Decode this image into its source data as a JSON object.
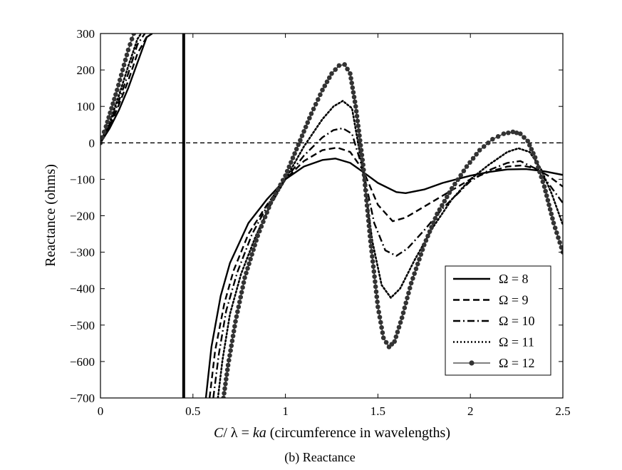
{
  "caption": "(b) Reactance",
  "chart_data": {
    "type": "line",
    "title": "",
    "xlabel_parts": [
      "C",
      "/ λ = ",
      "ka",
      " (circumference in wavelengths)"
    ],
    "ylabel": "Reactance (ohms)",
    "xlim": [
      0,
      2.5
    ],
    "ylim": [
      -700,
      300
    ],
    "xticks": [
      0,
      0.5,
      1,
      1.5,
      2,
      2.5
    ],
    "xtick_labels": [
      "0",
      "0.5",
      "1",
      "1.5",
      "2",
      "2.5"
    ],
    "yticks": [
      300,
      200,
      100,
      0,
      -100,
      -200,
      -300,
      -400,
      -500,
      -600,
      -700
    ],
    "ytick_labels": [
      "300",
      "200",
      "100",
      "0",
      "−100",
      "−200",
      "−300",
      "−400",
      "−500",
      "−600",
      "−700"
    ],
    "grid": false,
    "legend_position": "bottom-right",
    "reference_lines": [
      {
        "orientation": "horizontal",
        "value": 0,
        "style": "dashed"
      },
      {
        "orientation": "vertical",
        "value": 0.45,
        "style": "solid"
      }
    ],
    "series": [
      {
        "name": "Ω = 8",
        "style": "solid",
        "segments": [
          {
            "x": [
              0,
              0.05,
              0.1,
              0.15,
              0.2,
              0.25,
              0.28
            ],
            "y": [
              0,
              40,
              90,
              150,
              220,
              290,
              300
            ]
          },
          {
            "x": [
              0.57,
              0.6,
              0.65,
              0.7,
              0.8,
              0.9,
              1.0,
              1.1,
              1.2,
              1.27,
              1.35,
              1.42,
              1.5,
              1.6,
              1.65,
              1.75,
              1.85,
              2.0,
              2.1,
              2.2,
              2.3,
              2.4,
              2.5
            ],
            "y": [
              -700,
              -560,
              -420,
              -330,
              -220,
              -155,
              -100,
              -65,
              -47,
              -43,
              -55,
              -80,
              -110,
              -135,
              -138,
              -128,
              -110,
              -90,
              -80,
              -73,
              -72,
              -78,
              -88
            ]
          }
        ]
      },
      {
        "name": "Ω = 9",
        "style": "dashed",
        "segments": [
          {
            "x": [
              0,
              0.05,
              0.1,
              0.15,
              0.2,
              0.26
            ],
            "y": [
              0,
              45,
              105,
              170,
              245,
              300
            ]
          },
          {
            "x": [
              0.59,
              0.62,
              0.67,
              0.72,
              0.8,
              0.9,
              1.0,
              1.1,
              1.2,
              1.28,
              1.35,
              1.42,
              1.5,
              1.58,
              1.65,
              1.75,
              1.85,
              2.0,
              2.1,
              2.2,
              2.28,
              2.35,
              2.42,
              2.5
            ],
            "y": [
              -700,
              -570,
              -440,
              -350,
              -250,
              -170,
              -100,
              -50,
              -20,
              -13,
              -25,
              -75,
              -170,
              -215,
              -205,
              -175,
              -145,
              -100,
              -80,
              -65,
              -62,
              -70,
              -90,
              -120
            ]
          }
        ]
      },
      {
        "name": "Ω = 10",
        "style": "dashdot",
        "segments": [
          {
            "x": [
              0,
              0.05,
              0.1,
              0.15,
              0.2,
              0.24
            ],
            "y": [
              0,
              50,
              115,
              190,
              270,
              300
            ]
          },
          {
            "x": [
              0.61,
              0.64,
              0.68,
              0.74,
              0.82,
              0.9,
              1.0,
              1.1,
              1.2,
              1.26,
              1.31,
              1.36,
              1.42,
              1.48,
              1.54,
              1.6,
              1.66,
              1.75,
              1.85,
              2.0,
              2.1,
              2.2,
              2.27,
              2.35,
              2.42,
              2.5
            ],
            "y": [
              -700,
              -580,
              -460,
              -355,
              -250,
              -175,
              -100,
              -35,
              15,
              35,
              40,
              25,
              -75,
              -220,
              -295,
              -310,
              -290,
              -240,
              -180,
              -105,
              -75,
              -55,
              -50,
              -70,
              -110,
              -165
            ]
          }
        ]
      },
      {
        "name": "Ω = 11",
        "style": "dotted",
        "segments": [
          {
            "x": [
              0,
              0.05,
              0.1,
              0.15,
              0.2,
              0.22
            ],
            "y": [
              0,
              55,
              130,
              210,
              285,
              300
            ]
          },
          {
            "x": [
              0.635,
              0.66,
              0.7,
              0.76,
              0.84,
              0.92,
              1.0,
              1.1,
              1.2,
              1.26,
              1.31,
              1.36,
              1.42,
              1.47,
              1.52,
              1.57,
              1.62,
              1.7,
              1.8,
              1.9,
              2.0,
              2.1,
              2.2,
              2.26,
              2.32,
              2.38,
              2.44,
              2.5
            ],
            "y": [
              -700,
              -595,
              -470,
              -360,
              -255,
              -170,
              -100,
              -10,
              65,
              100,
              115,
              95,
              -80,
              -270,
              -390,
              -425,
              -400,
              -320,
              -230,
              -155,
              -100,
              -60,
              -25,
              -15,
              -25,
              -70,
              -140,
              -225
            ]
          }
        ]
      },
      {
        "name": "Ω = 12",
        "style": "solid-markers",
        "segments": [
          {
            "x": [
              0,
              0.03,
              0.06,
              0.09,
              0.12,
              0.15,
              0.18
            ],
            "y": [
              0,
              45,
              95,
              145,
              200,
              255,
              300
            ]
          },
          {
            "x": [
              0.665,
              0.69,
              0.73,
              0.78,
              0.85,
              0.92,
              1.0,
              1.07,
              1.14,
              1.2,
              1.25,
              1.29,
              1.32,
              1.35,
              1.38,
              1.42,
              1.46,
              1.5,
              1.53,
              1.56,
              1.59,
              1.63,
              1.68,
              1.75,
              1.82,
              1.9,
              1.98,
              2.05,
              2.12,
              2.18,
              2.23,
              2.27,
              2.31,
              2.35,
              2.4,
              2.45,
              2.5
            ],
            "y": [
              -700,
              -610,
              -490,
              -370,
              -255,
              -165,
              -90,
              -5,
              80,
              145,
              190,
              212,
              215,
              190,
              100,
              -60,
              -270,
              -450,
              -535,
              -560,
              -545,
              -480,
              -385,
              -280,
              -195,
              -125,
              -65,
              -20,
              10,
              25,
              30,
              25,
              5,
              -40,
              -120,
              -220,
              -300
            ]
          }
        ]
      }
    ]
  }
}
